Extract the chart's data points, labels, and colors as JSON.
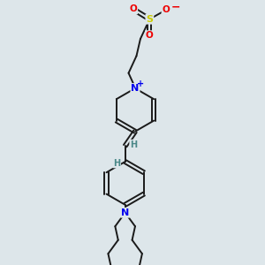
{
  "bg_color": "#dde6ea",
  "bond_color": "#1a1a1a",
  "bond_width": 1.4,
  "N_color": "#0000ee",
  "S_color": "#cccc00",
  "O_color": "#ee0000",
  "H_color": "#4a8888",
  "figsize": [
    3.0,
    3.0
  ],
  "dpi": 100,
  "xlim": [
    0,
    10
  ],
  "ylim": [
    0,
    10
  ]
}
